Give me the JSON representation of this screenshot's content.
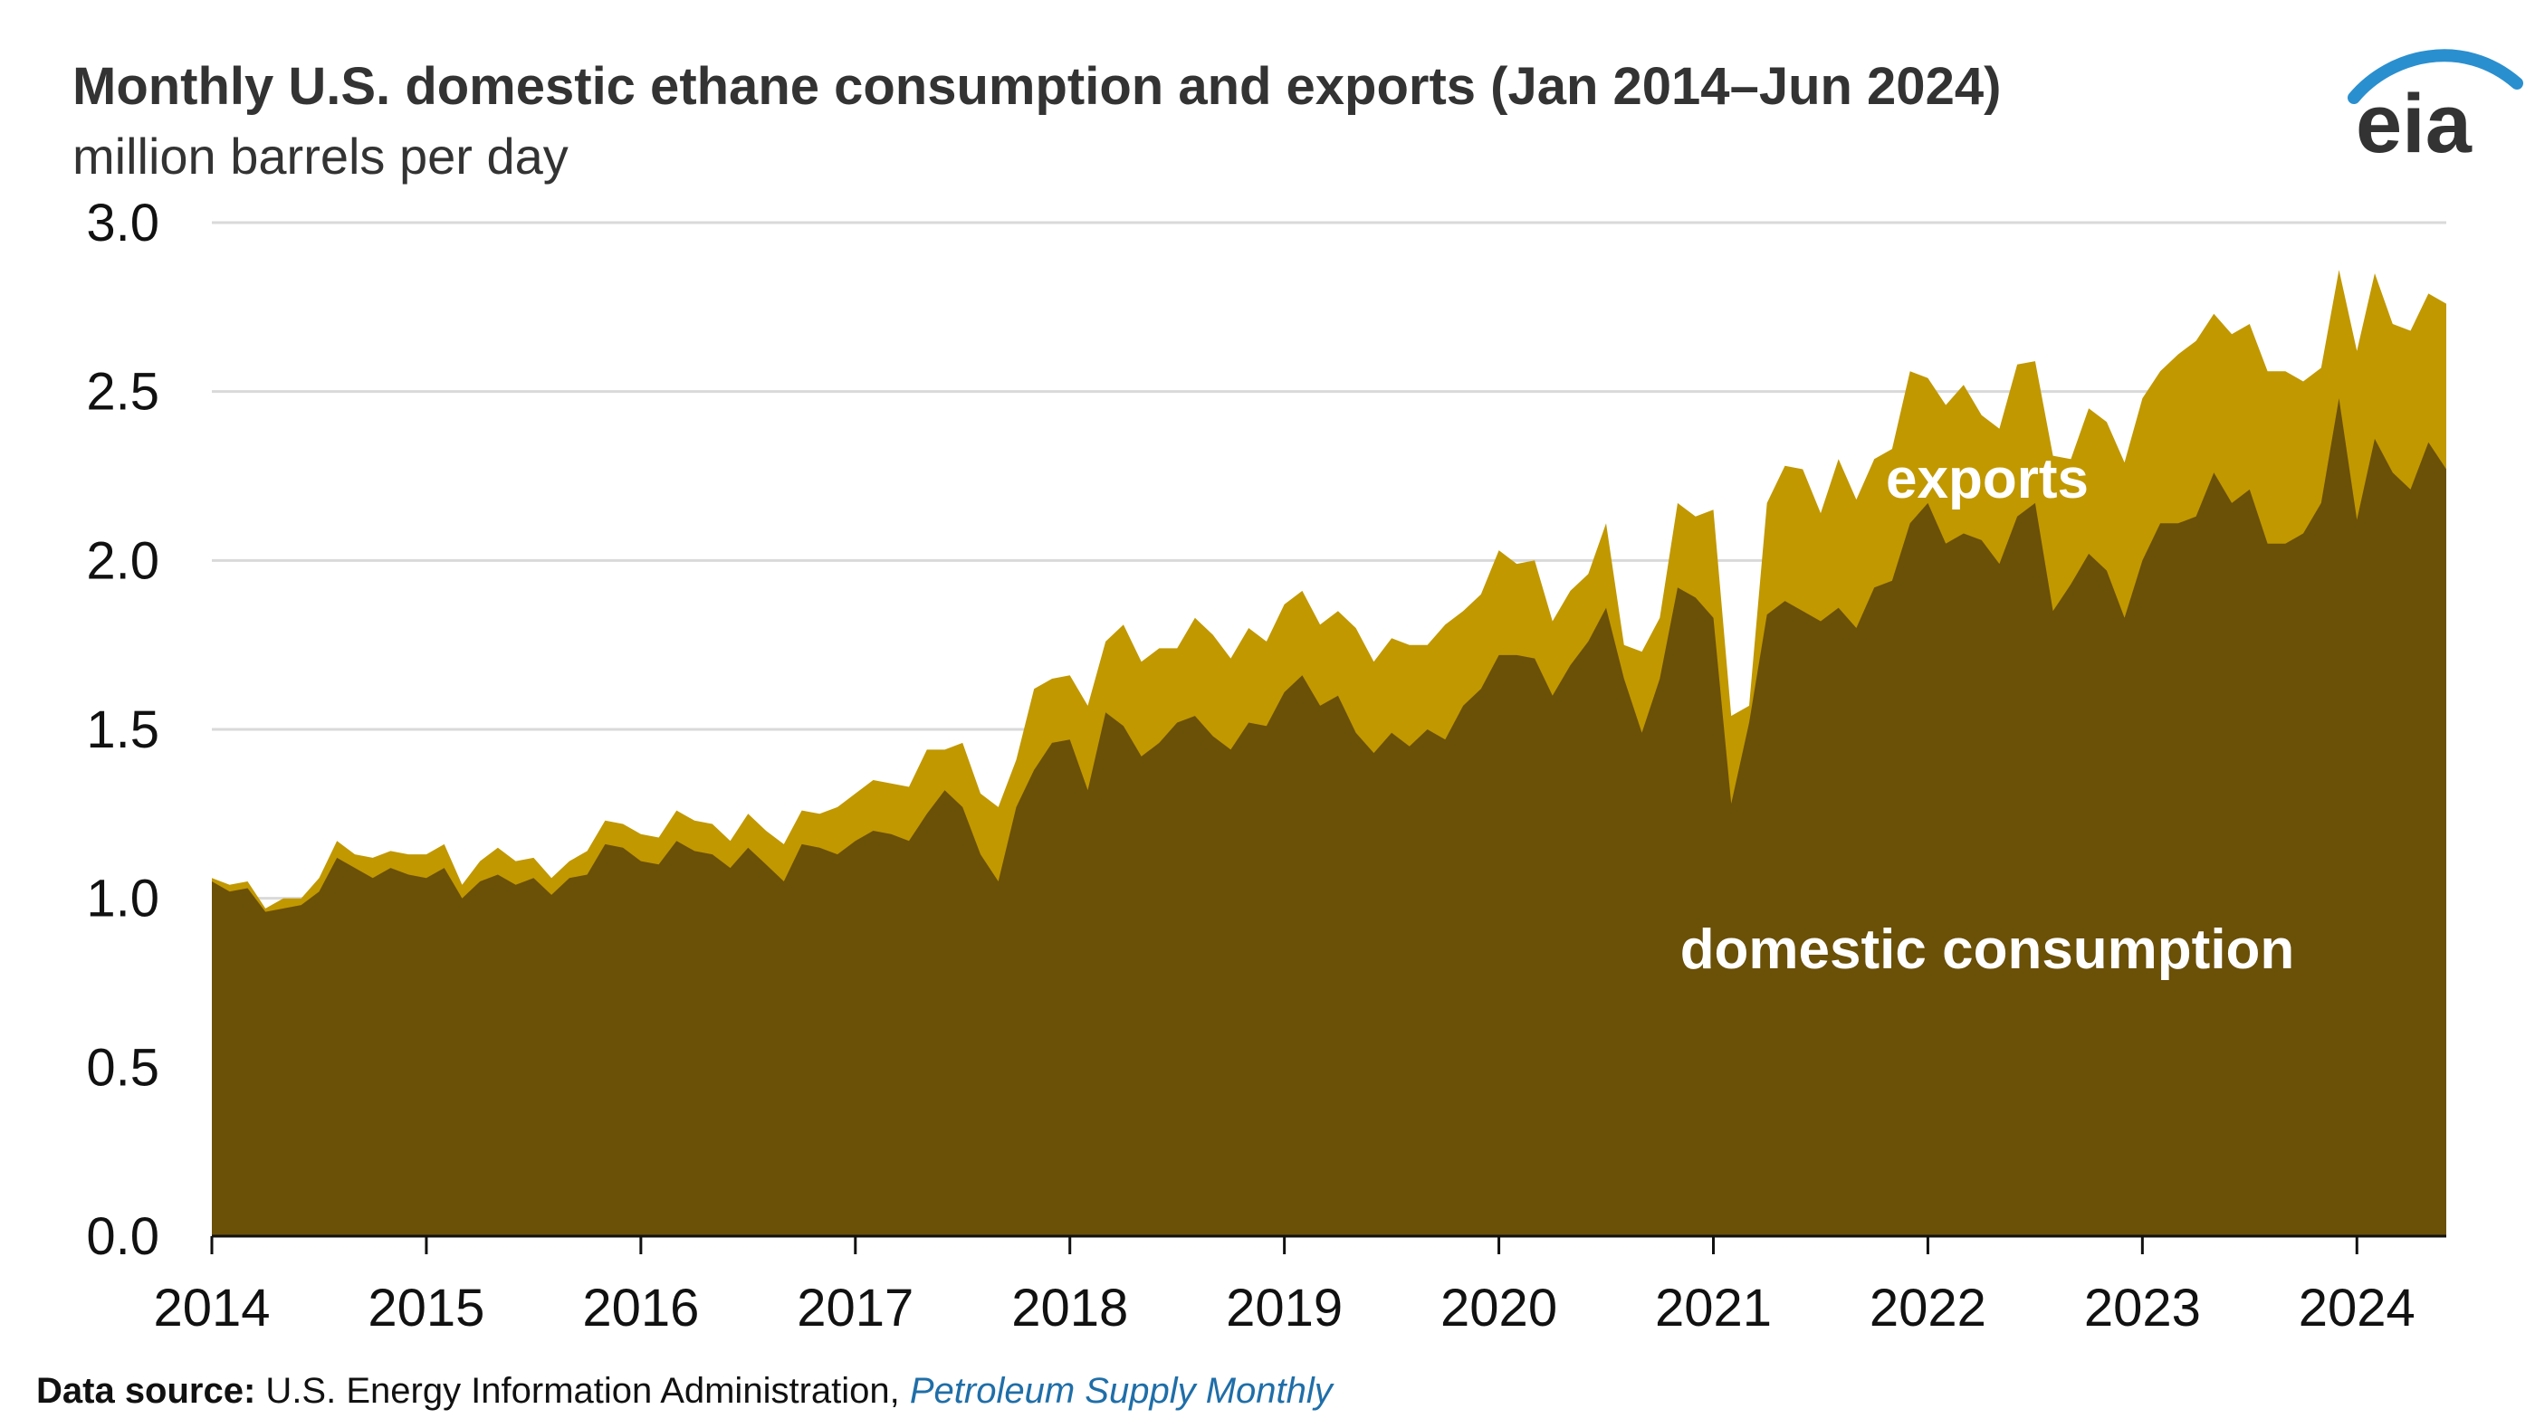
{
  "header": {
    "title": "Monthly U.S. domestic ethane consumption and exports (Jan 2014–Jun 2024)",
    "subtitle": "million barrels per day"
  },
  "logo": {
    "text": "eia"
  },
  "footer": {
    "source_label": "Data source:",
    "source_text": " U.S. Energy Information Administration, ",
    "publication": "Petroleum Supply Monthly"
  },
  "colors": {
    "domestic": "#6b5008",
    "exports": "#c19800",
    "grid": "#d9d9d9",
    "axis": "#111111",
    "logo_arc": "#2a8fcf"
  },
  "chart_data": {
    "type": "area",
    "stacked": true,
    "title": "Monthly U.S. domestic ethane consumption and exports (Jan 2014–Jun 2024)",
    "ylabel": "million barrels per day",
    "ylim": [
      0,
      3
    ],
    "yticks": [
      "0.0",
      "0.5",
      "1.0",
      "1.5",
      "2.0",
      "2.5",
      "3.0"
    ],
    "xticks": [
      "2014",
      "2015",
      "2016",
      "2017",
      "2018",
      "2019",
      "2020",
      "2021",
      "2022",
      "2023",
      "2024"
    ],
    "grid": true,
    "x_start": "2014-01",
    "x_end": "2024-06",
    "series": [
      {
        "name": "domestic consumption",
        "values": [
          1.05,
          1.02,
          1.03,
          0.96,
          0.97,
          0.98,
          1.02,
          1.12,
          1.09,
          1.06,
          1.09,
          1.07,
          1.06,
          1.09,
          1.0,
          1.05,
          1.07,
          1.04,
          1.06,
          1.01,
          1.06,
          1.07,
          1.16,
          1.15,
          1.11,
          1.1,
          1.17,
          1.14,
          1.13,
          1.09,
          1.15,
          1.1,
          1.05,
          1.16,
          1.15,
          1.13,
          1.17,
          1.2,
          1.19,
          1.17,
          1.25,
          1.32,
          1.27,
          1.13,
          1.05,
          1.27,
          1.38,
          1.46,
          1.47,
          1.32,
          1.55,
          1.51,
          1.42,
          1.46,
          1.52,
          1.54,
          1.48,
          1.44,
          1.52,
          1.51,
          1.61,
          1.66,
          1.57,
          1.6,
          1.49,
          1.43,
          1.49,
          1.45,
          1.5,
          1.47,
          1.57,
          1.62,
          1.72,
          1.72,
          1.71,
          1.6,
          1.69,
          1.76,
          1.86,
          1.65,
          1.49,
          1.65,
          1.92,
          1.89,
          1.83,
          1.28,
          1.52,
          1.84,
          1.88,
          1.85,
          1.82,
          1.86,
          1.8,
          1.92,
          1.94,
          2.11,
          2.17,
          2.05,
          2.08,
          2.06,
          1.99,
          2.13,
          2.17,
          1.85,
          1.93,
          2.02,
          1.97,
          1.83,
          2.0,
          2.11,
          2.11,
          2.13,
          2.26,
          2.17,
          2.21,
          2.05,
          2.05,
          2.08,
          2.17,
          2.48,
          2.12,
          2.36,
          2.26,
          2.21,
          2.35,
          2.27
        ]
      },
      {
        "name": "exports",
        "values": [
          0.01,
          0.02,
          0.02,
          0.01,
          0.03,
          0.02,
          0.04,
          0.05,
          0.04,
          0.06,
          0.05,
          0.06,
          0.07,
          0.07,
          0.04,
          0.06,
          0.08,
          0.07,
          0.06,
          0.05,
          0.05,
          0.07,
          0.07,
          0.07,
          0.08,
          0.08,
          0.09,
          0.09,
          0.09,
          0.08,
          0.1,
          0.1,
          0.11,
          0.1,
          0.1,
          0.14,
          0.14,
          0.15,
          0.15,
          0.16,
          0.19,
          0.12,
          0.19,
          0.18,
          0.22,
          0.14,
          0.24,
          0.19,
          0.19,
          0.25,
          0.21,
          0.3,
          0.28,
          0.28,
          0.22,
          0.29,
          0.3,
          0.27,
          0.28,
          0.25,
          0.26,
          0.25,
          0.24,
          0.25,
          0.31,
          0.27,
          0.28,
          0.3,
          0.25,
          0.34,
          0.28,
          0.28,
          0.31,
          0.27,
          0.29,
          0.22,
          0.22,
          0.2,
          0.25,
          0.1,
          0.24,
          0.18,
          0.25,
          0.24,
          0.32,
          0.26,
          0.05,
          0.33,
          0.4,
          0.42,
          0.32,
          0.44,
          0.38,
          0.38,
          0.39,
          0.45,
          0.37,
          0.41,
          0.44,
          0.37,
          0.4,
          0.45,
          0.42,
          0.46,
          0.37,
          0.43,
          0.44,
          0.46,
          0.48,
          0.45,
          0.5,
          0.52,
          0.47,
          0.5,
          0.49,
          0.51,
          0.51,
          0.45,
          0.4,
          0.38,
          0.5,
          0.49,
          0.44,
          0.47,
          0.44,
          0.49
        ]
      }
    ],
    "annotations": [
      "exports",
      "domestic consumption"
    ]
  }
}
